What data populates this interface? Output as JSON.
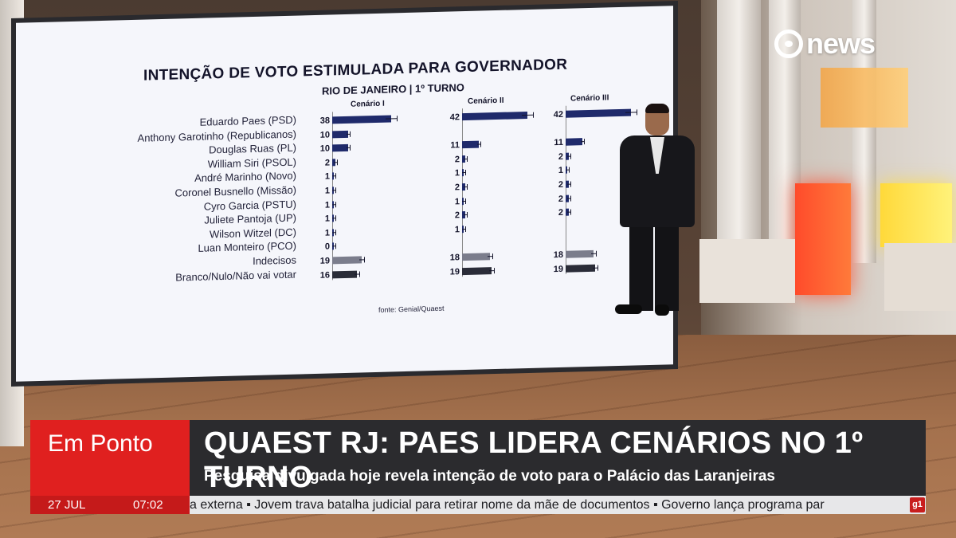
{
  "broadcast": {
    "channel_logo": "news",
    "program": "Em Ponto",
    "headline": "QUAEST RJ: PAES LIDERA CENÁRIOS NO 1º TURNO",
    "subheadline": "Pesquisa divulgada hoje revela intenção de voto para o Palácio das Laranjeiras",
    "date": "27 JUL",
    "time": "07:02",
    "ticker": "a externa  ▪  Jovem trava batalha judicial para retirar nome da mãe de documentos  ▪  Governo lança programa par",
    "ticker_badge": "g1"
  },
  "chart_data": {
    "type": "bar",
    "title": "INTENÇÃO DE VOTO ESTIMULADA PARA GOVERNADOR",
    "subtitle": "RIO DE JANEIRO | 1º TURNO",
    "source": "fonte: Genial/Quaest",
    "categories": [
      "Eduardo Paes (PSD)",
      "Anthony Garotinho (Republicanos)",
      "Douglas Ruas (PL)",
      "William Siri (PSOL)",
      "André Marinho (Novo)",
      "Coronel Busnello (Missão)",
      "Cyro Garcia (PSTU)",
      "Juliete Pantoja (UP)",
      "Wilson Witzel (DC)",
      "Luan Monteiro (PCO)",
      "Indecisos",
      "Branco/Nulo/Não vai votar"
    ],
    "series": [
      {
        "name": "Cenário I",
        "values": [
          38,
          10,
          10,
          2,
          1,
          1,
          1,
          1,
          1,
          0,
          19,
          16
        ]
      },
      {
        "name": "Cenário II",
        "values": [
          42,
          null,
          11,
          2,
          1,
          2,
          1,
          2,
          1,
          null,
          18,
          19
        ]
      },
      {
        "name": "Cenário III",
        "values": [
          42,
          null,
          11,
          2,
          1,
          2,
          2,
          2,
          null,
          null,
          18,
          19
        ]
      }
    ],
    "colors": {
      "main": "#1f2a6b",
      "undecided": "#7b7d8c",
      "blank": "#2a2c38"
    }
  }
}
